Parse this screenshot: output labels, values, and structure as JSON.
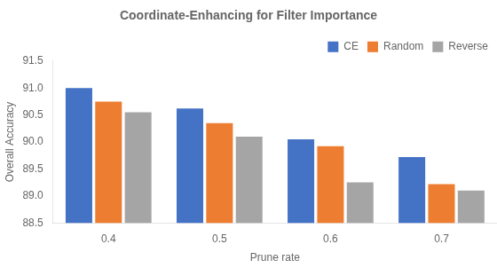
{
  "chart_data": {
    "type": "bar",
    "title": "Coordinate-Enhancing for Filter Importance",
    "x_label": "Prune rate",
    "y_label": "Overall Accuracy",
    "categories": [
      "0.4",
      "0.5",
      "0.6",
      "0.7"
    ],
    "series": [
      {
        "name": "CE",
        "color": "#4472C4",
        "values": [
          91.0,
          90.62,
          90.05,
          89.72
        ]
      },
      {
        "name": "Random",
        "color": "#ED7D31",
        "values": [
          90.75,
          90.35,
          89.92,
          89.22
        ]
      },
      {
        "name": "Reverse",
        "color": "#A5A5A5",
        "values": [
          90.55,
          90.1,
          89.25,
          89.1
        ]
      }
    ],
    "ylim": [
      88.5,
      91.5
    ],
    "yticks": [
      88.5,
      {
        "value": 89,
        "label": "89.0"
      },
      89.5,
      {
        "value": 90,
        "label": "90.0"
      },
      90.5,
      {
        "value": 91,
        "label": "91.0"
      },
      91.5
    ],
    "grid": false,
    "legend": "upper right"
  }
}
